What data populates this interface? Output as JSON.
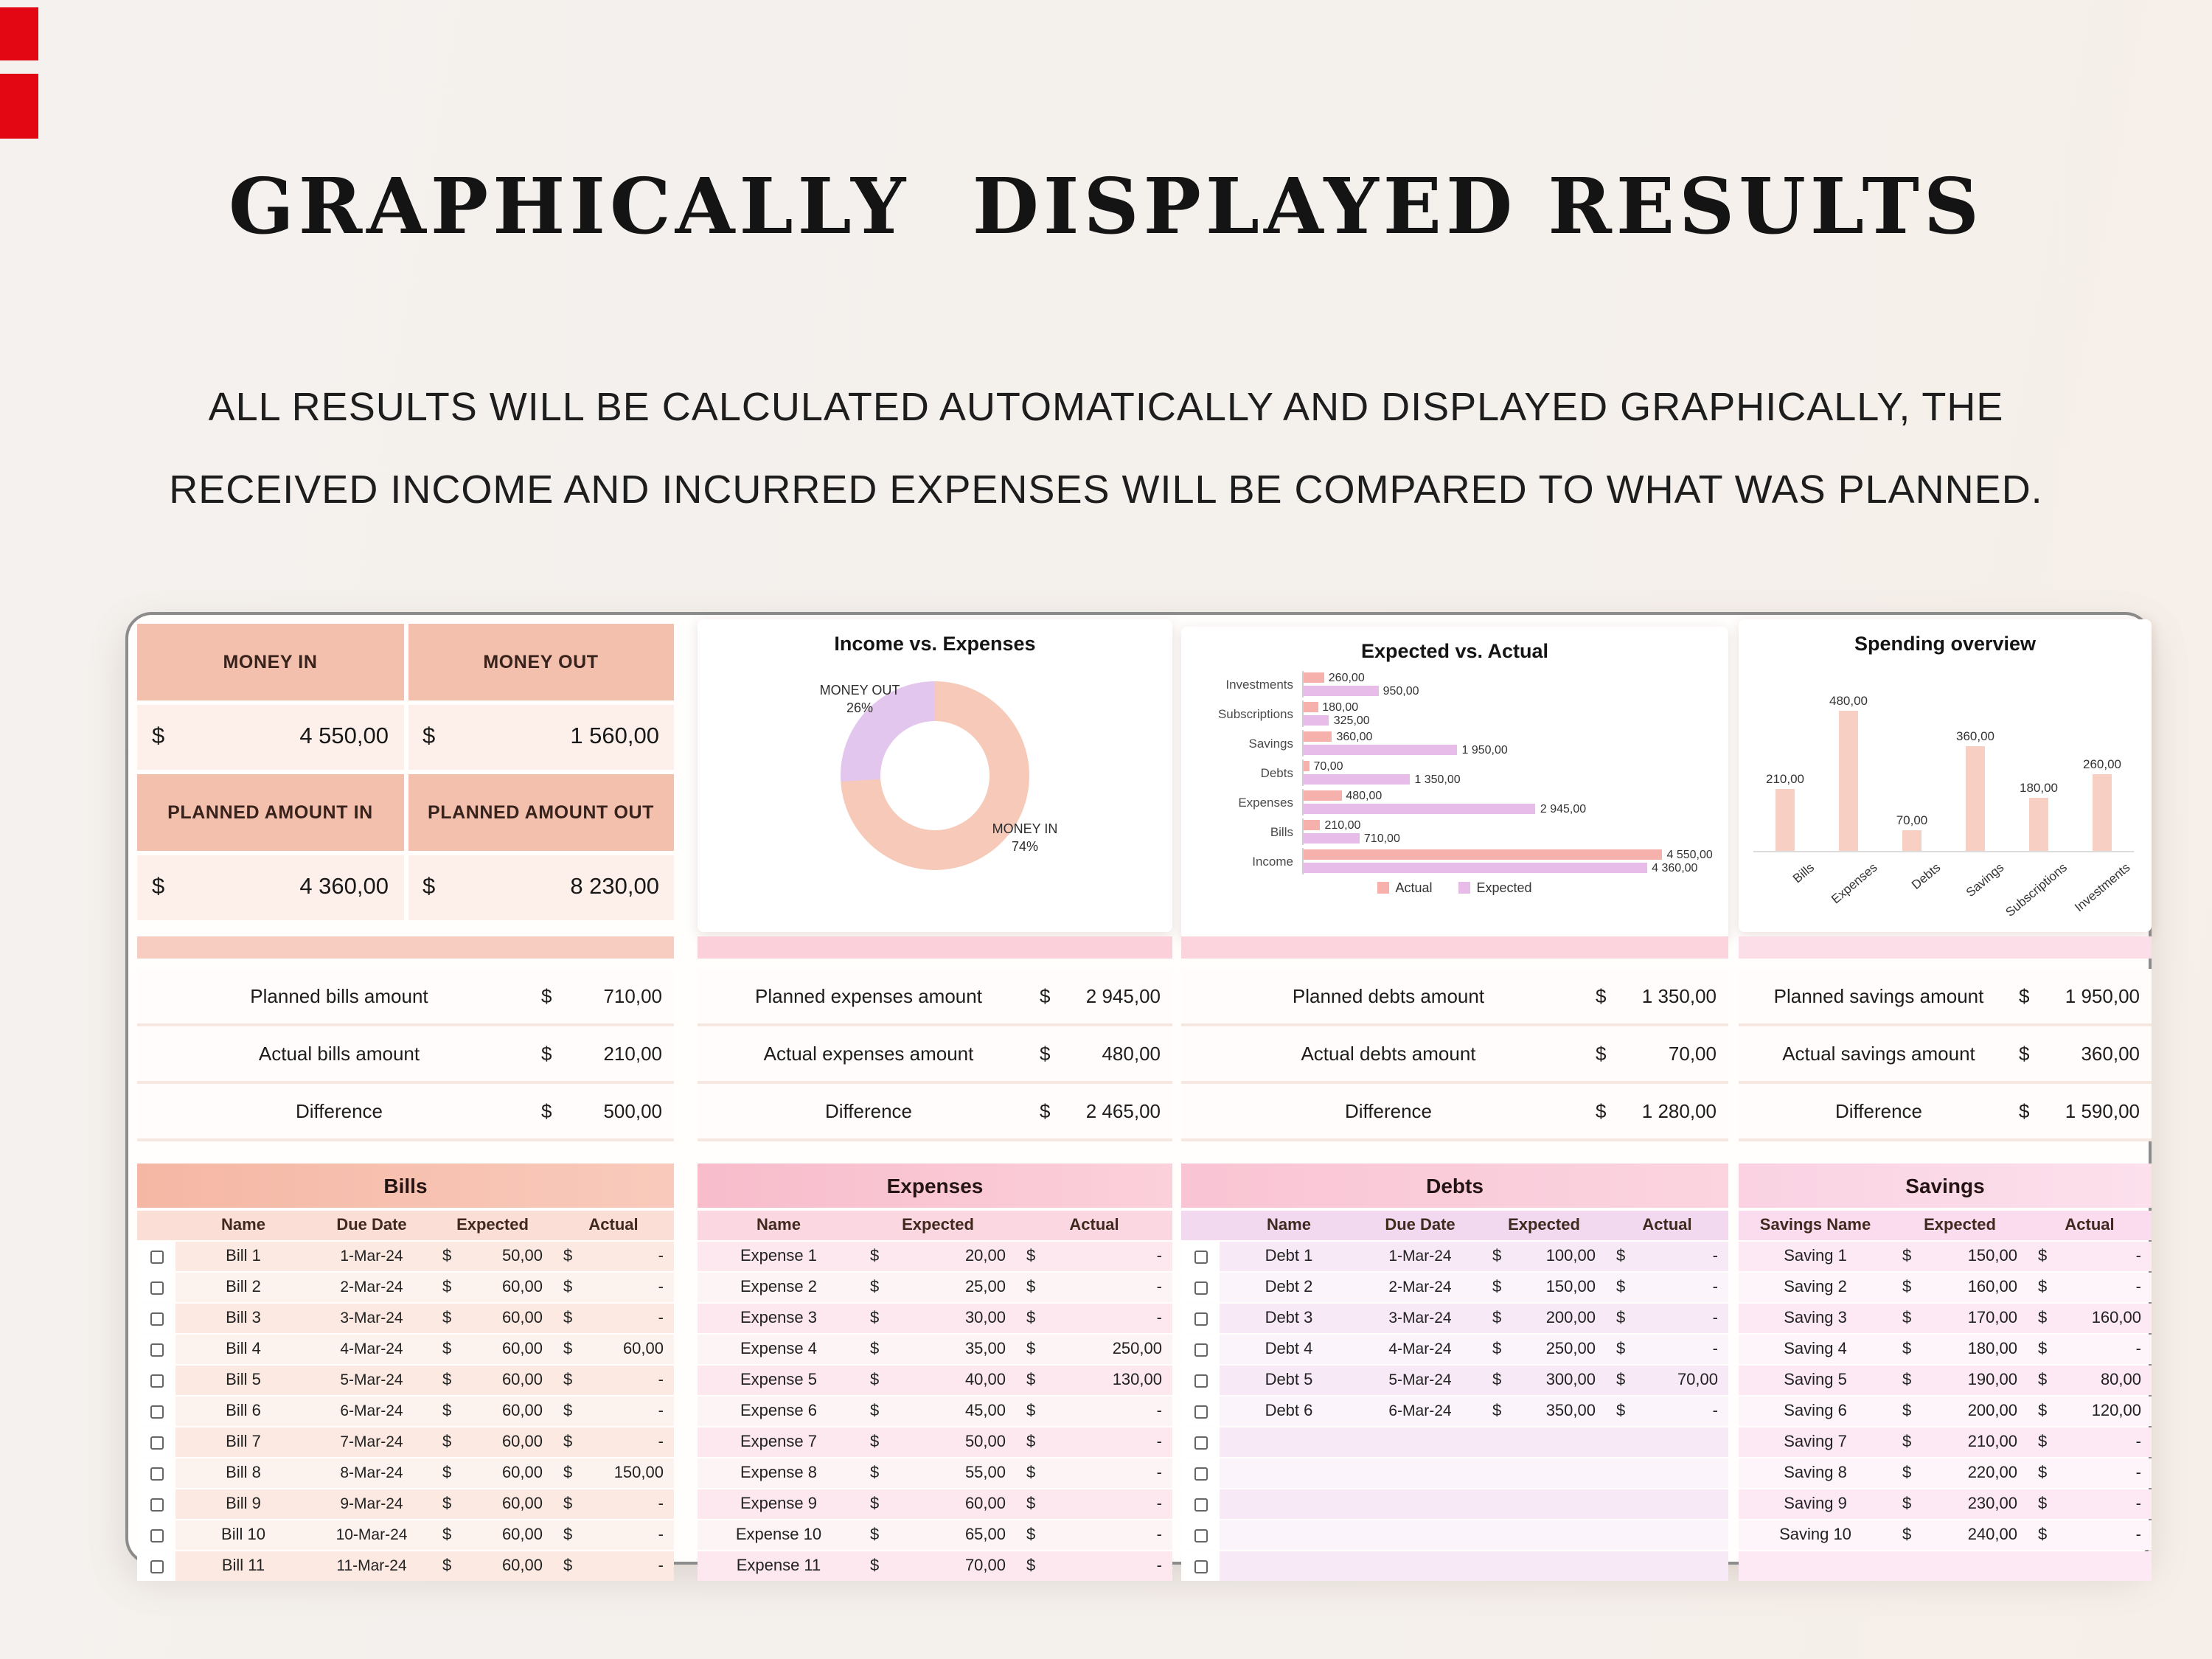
{
  "page": {
    "title": "GRAPHICALLY  DISPLAYED RESULTS",
    "subtitle_line1": "ALL RESULTS WILL BE CALCULATED AUTOMATICALLY AND DISPLAYED GRAPHICALLY, THE",
    "subtitle_line2": "RECEIVED INCOME AND INCURRED EXPENSES WILL BE COMPARED TO WHAT WAS PLANNED."
  },
  "colors": {
    "accent_red": "#e30613",
    "actual_pink": "#f6b1ad",
    "expected_purple": "#e7bce9",
    "donut_in_salmon": "#f6c9b8",
    "donut_out_lavender": "#e3c6ee",
    "spending_bar": "#f8cfc3",
    "header_salmon": "#f4c0ae"
  },
  "money_panel": {
    "currency": "$",
    "header_in": "MONEY IN",
    "header_out": "MONEY OUT",
    "value_in": "4 550,00",
    "value_out": "1 560,00",
    "planned_header_in": "PLANNED AMOUNT IN",
    "planned_header_out": "PLANNED AMOUNT OUT",
    "planned_in": "4 360,00",
    "planned_out": "8 230,00"
  },
  "chart_data": [
    {
      "type": "pie",
      "title": "Income vs. Expenses",
      "labels": [
        "MONEY IN",
        "MONEY OUT"
      ],
      "values": [
        74,
        26
      ],
      "display": [
        "74%",
        "26%"
      ]
    },
    {
      "type": "bar",
      "orientation": "horizontal",
      "title": "Expected vs. Actual",
      "legend": [
        "Actual",
        "Expected"
      ],
      "max": 5200,
      "rows": [
        {
          "label": "Investments",
          "actual": 260,
          "actual_label": "260,00",
          "expected": 950,
          "expected_label": "950,00"
        },
        {
          "label": "Subscriptions",
          "actual": 180,
          "actual_label": "180,00",
          "expected": 325,
          "expected_label": "325,00"
        },
        {
          "label": "Savings",
          "actual": 360,
          "actual_label": "360,00",
          "expected": 1950,
          "expected_label": "1 950,00"
        },
        {
          "label": "Debts",
          "actual": 70,
          "actual_label": "70,00",
          "expected": 1350,
          "expected_label": "1 350,00"
        },
        {
          "label": "Expenses",
          "actual": 480,
          "actual_label": "480,00",
          "expected": 2945,
          "expected_label": "2 945,00"
        },
        {
          "label": "Bills",
          "actual": 210,
          "actual_label": "210,00",
          "expected": 710,
          "expected_label": "710,00"
        },
        {
          "label": "Income",
          "actual": 4550,
          "actual_label": "4 550,00",
          "expected": 4360,
          "expected_label": "4 360,00"
        }
      ]
    },
    {
      "type": "bar",
      "orientation": "vertical",
      "title": "Spending overview",
      "ymax": 560,
      "bars": [
        {
          "label": "Bills",
          "value": 210,
          "value_label": "210,00"
        },
        {
          "label": "Expenses",
          "value": 480,
          "value_label": "480,00"
        },
        {
          "label": "Debts",
          "value": 70,
          "value_label": "70,00"
        },
        {
          "label": "Savings",
          "value": 360,
          "value_label": "360,00"
        },
        {
          "label": "Subscriptions",
          "value": 180,
          "value_label": "180,00"
        },
        {
          "label": "Investments",
          "value": 260,
          "value_label": "260,00"
        }
      ]
    }
  ],
  "summaries": {
    "bills": {
      "rows": [
        {
          "label": "Planned bills amount",
          "cur": "$",
          "value": "710,00"
        },
        {
          "label": "Actual bills amount",
          "cur": "$",
          "value": "210,00"
        },
        {
          "label": "Difference",
          "cur": "$",
          "value": "500,00"
        }
      ]
    },
    "expenses": {
      "rows": [
        {
          "label": "Planned expenses amount",
          "cur": "$",
          "value": "2 945,00"
        },
        {
          "label": "Actual expenses amount",
          "cur": "$",
          "value": "480,00"
        },
        {
          "label": "Difference",
          "cur": "$",
          "value": "2 465,00"
        }
      ]
    },
    "debts": {
      "rows": [
        {
          "label": "Planned debts amount",
          "cur": "$",
          "value": "1 350,00"
        },
        {
          "label": "Actual debts amount",
          "cur": "$",
          "value": "70,00"
        },
        {
          "label": "Difference",
          "cur": "$",
          "value": "1 280,00"
        }
      ]
    },
    "savings": {
      "rows": [
        {
          "label": "Planned savings amount",
          "cur": "$",
          "value": "1 950,00"
        },
        {
          "label": "Actual savings amount",
          "cur": "$",
          "value": "360,00"
        },
        {
          "label": "Difference",
          "cur": "$",
          "value": "1 590,00"
        }
      ]
    }
  },
  "tables": {
    "bills": {
      "title": "Bills",
      "headers": {
        "name": "Name",
        "date": "Due Date",
        "expected": "Expected",
        "actual": "Actual"
      },
      "rows": [
        {
          "cur": "$",
          "name": "Bill 1",
          "date": "1-Mar-24",
          "expected": "50,00",
          "actual": "-"
        },
        {
          "cur": "$",
          "name": "Bill 2",
          "date": "2-Mar-24",
          "expected": "60,00",
          "actual": "-"
        },
        {
          "cur": "$",
          "name": "Bill 3",
          "date": "3-Mar-24",
          "expected": "60,00",
          "actual": "-"
        },
        {
          "cur": "$",
          "name": "Bill 4",
          "date": "4-Mar-24",
          "expected": "60,00",
          "actual": "60,00"
        },
        {
          "cur": "$",
          "name": "Bill 5",
          "date": "5-Mar-24",
          "expected": "60,00",
          "actual": "-"
        },
        {
          "cur": "$",
          "name": "Bill 6",
          "date": "6-Mar-24",
          "expected": "60,00",
          "actual": "-"
        },
        {
          "cur": "$",
          "name": "Bill 7",
          "date": "7-Mar-24",
          "expected": "60,00",
          "actual": "-"
        },
        {
          "cur": "$",
          "name": "Bill 8",
          "date": "8-Mar-24",
          "expected": "60,00",
          "actual": "150,00"
        },
        {
          "cur": "$",
          "name": "Bill 9",
          "date": "9-Mar-24",
          "expected": "60,00",
          "actual": "-"
        },
        {
          "cur": "$",
          "name": "Bill 10",
          "date": "10-Mar-24",
          "expected": "60,00",
          "actual": "-"
        },
        {
          "cur": "$",
          "name": "Bill 11",
          "date": "11-Mar-24",
          "expected": "60,00",
          "actual": "-"
        }
      ]
    },
    "expenses": {
      "title": "Expenses",
      "headers": {
        "name": "Name",
        "expected": "Expected",
        "actual": "Actual"
      },
      "rows": [
        {
          "cur": "$",
          "name": "Expense 1",
          "expected": "20,00",
          "actual": "-"
        },
        {
          "cur": "$",
          "name": "Expense 2",
          "expected": "25,00",
          "actual": "-"
        },
        {
          "cur": "$",
          "name": "Expense 3",
          "expected": "30,00",
          "actual": "-"
        },
        {
          "cur": "$",
          "name": "Expense 4",
          "expected": "35,00",
          "actual": "250,00"
        },
        {
          "cur": "$",
          "name": "Expense 5",
          "expected": "40,00",
          "actual": "130,00"
        },
        {
          "cur": "$",
          "name": "Expense 6",
          "expected": "45,00",
          "actual": "-"
        },
        {
          "cur": "$",
          "name": "Expense 7",
          "expected": "50,00",
          "actual": "-"
        },
        {
          "cur": "$",
          "name": "Expense 8",
          "expected": "55,00",
          "actual": "-"
        },
        {
          "cur": "$",
          "name": "Expense 9",
          "expected": "60,00",
          "actual": "-"
        },
        {
          "cur": "$",
          "name": "Expense 10",
          "expected": "65,00",
          "actual": "-"
        },
        {
          "cur": "$",
          "name": "Expense 11",
          "expected": "70,00",
          "actual": "-"
        }
      ]
    },
    "debts": {
      "title": "Debts",
      "headers": {
        "name": "Name",
        "date": "Due Date",
        "expected": "Expected",
        "actual": "Actual"
      },
      "rows": [
        {
          "cur": "$",
          "name": "Debt 1",
          "date": "1-Mar-24",
          "expected": "100,00",
          "actual": "-"
        },
        {
          "cur": "$",
          "name": "Debt 2",
          "date": "2-Mar-24",
          "expected": "150,00",
          "actual": "-"
        },
        {
          "cur": "$",
          "name": "Debt 3",
          "date": "3-Mar-24",
          "expected": "200,00",
          "actual": "-"
        },
        {
          "cur": "$",
          "name": "Debt 4",
          "date": "4-Mar-24",
          "expected": "250,00",
          "actual": "-"
        },
        {
          "cur": "$",
          "name": "Debt 5",
          "date": "5-Mar-24",
          "expected": "300,00",
          "actual": "70,00"
        },
        {
          "cur": "$",
          "name": "Debt 6",
          "date": "6-Mar-24",
          "expected": "350,00",
          "actual": "-"
        },
        {
          "cur": "",
          "name": "",
          "date": "",
          "expected": "",
          "actual": ""
        },
        {
          "cur": "",
          "name": "",
          "date": "",
          "expected": "",
          "actual": ""
        },
        {
          "cur": "",
          "name": "",
          "date": "",
          "expected": "",
          "actual": ""
        },
        {
          "cur": "",
          "name": "",
          "date": "",
          "expected": "",
          "actual": ""
        },
        {
          "cur": "",
          "name": "",
          "date": "",
          "expected": "",
          "actual": ""
        }
      ]
    },
    "savings": {
      "title": "Savings",
      "headers": {
        "name": "Savings Name",
        "expected": "Expected",
        "actual": "Actual"
      },
      "rows": [
        {
          "cur": "$",
          "name": "Saving 1",
          "expected": "150,00",
          "actual": "-"
        },
        {
          "cur": "$",
          "name": "Saving 2",
          "expected": "160,00",
          "actual": "-"
        },
        {
          "cur": "$",
          "name": "Saving 3",
          "expected": "170,00",
          "actual": "160,00"
        },
        {
          "cur": "$",
          "name": "Saving 4",
          "expected": "180,00",
          "actual": "-"
        },
        {
          "cur": "$",
          "name": "Saving 5",
          "expected": "190,00",
          "actual": "80,00"
        },
        {
          "cur": "$",
          "name": "Saving 6",
          "expected": "200,00",
          "actual": "120,00"
        },
        {
          "cur": "$",
          "name": "Saving 7",
          "expected": "210,00",
          "actual": "-"
        },
        {
          "cur": "$",
          "name": "Saving 8",
          "expected": "220,00",
          "actual": "-"
        },
        {
          "cur": "$",
          "name": "Saving 9",
          "expected": "230,00",
          "actual": "-"
        },
        {
          "cur": "$",
          "name": "Saving 10",
          "expected": "240,00",
          "actual": "-"
        },
        {
          "cur": "",
          "name": "",
          "expected": "",
          "actual": ""
        }
      ]
    }
  }
}
